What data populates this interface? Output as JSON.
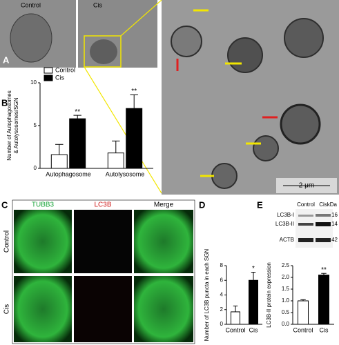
{
  "panel_labels": [
    "A",
    "B",
    "C",
    "D",
    "E"
  ],
  "em": {
    "labels": [
      "Control",
      "Cis"
    ],
    "scale_bar": "2 μm"
  },
  "fluorescence": {
    "columns": [
      "TUBB3",
      "LC3B",
      "Merge"
    ],
    "rows": [
      "Control",
      "Cis"
    ]
  },
  "western": {
    "columns": [
      "Control",
      "Cis"
    ],
    "bands": [
      "LC3B-I",
      "LC3B-II",
      "ACTB"
    ],
    "kda_label": "kDa",
    "kda": [
      "16",
      "14",
      "42"
    ]
  },
  "chart_data": [
    {
      "type": "bar",
      "ylabel": [
        "Number of Autophagosomes",
        "& Autolysosomes/SGN"
      ],
      "categories": [
        "Autophagosome",
        "Autolysosome"
      ],
      "series": [
        {
          "name": "Control",
          "color": "#ffffff",
          "values": [
            1.6,
            1.8
          ],
          "errors": [
            1.2,
            1.4
          ],
          "significance": [
            null,
            null
          ]
        },
        {
          "name": "Cis",
          "color": "#000000",
          "values": [
            5.8,
            7.0
          ],
          "errors": [
            0.4,
            1.6
          ],
          "significance": [
            "**",
            "**"
          ]
        }
      ],
      "ylim": [
        0,
        10
      ],
      "yticks": [
        0,
        5,
        10
      ],
      "legend": "top-left"
    },
    {
      "type": "bar",
      "ylabel": [
        "Number of LC3B puncta  in each SGN"
      ],
      "categories": [
        "Control",
        "Cis"
      ],
      "values": [
        1.7,
        6.0
      ],
      "errors": [
        0.8,
        1.1
      ],
      "colors": [
        "#ffffff",
        "#000000"
      ],
      "significance": [
        null,
        "*"
      ],
      "ylim": [
        0,
        8
      ],
      "yticks": [
        0,
        2,
        4,
        6,
        8
      ]
    },
    {
      "type": "bar",
      "ylabel": [
        "LC3B-II protein expression"
      ],
      "categories": [
        "Control",
        "Cis"
      ],
      "values": [
        1.0,
        2.1
      ],
      "errors": [
        0.05,
        0.07
      ],
      "colors": [
        "#ffffff",
        "#000000"
      ],
      "significance": [
        null,
        "**"
      ],
      "ylim": [
        0,
        2.5
      ],
      "yticks": [
        {
          "value": 0,
          "label": "0.0"
        },
        0.5,
        {
          "value": 1,
          "label": "1.0"
        },
        1.5,
        {
          "value": 2,
          "label": "2.0"
        },
        2.5
      ]
    }
  ]
}
